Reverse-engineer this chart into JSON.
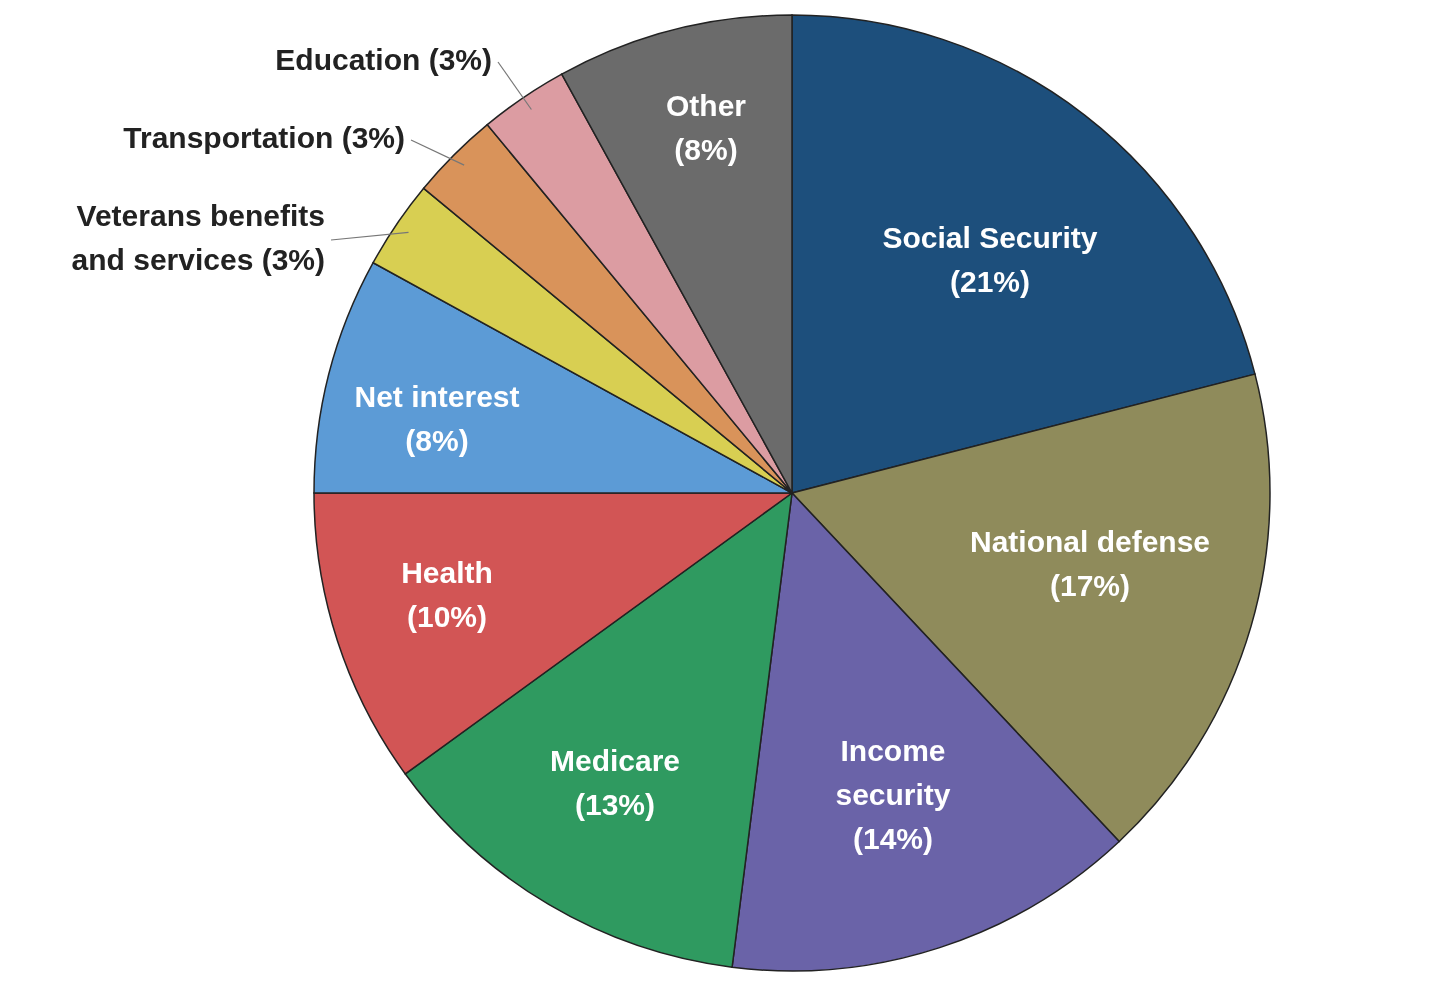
{
  "chart_data": {
    "type": "pie",
    "categories": [
      "Social Security",
      "National defense",
      "Income security",
      "Medicare",
      "Health",
      "Net interest",
      "Veterans benefits and services",
      "Transportation",
      "Education",
      "Other"
    ],
    "values": [
      21,
      17,
      14,
      13,
      10,
      8,
      3,
      3,
      3,
      8
    ],
    "colors": [
      "#1d4f7c",
      "#8f8b5b",
      "#6a63a8",
      "#2f9a60",
      "#d25555",
      "#5c9bd6",
      "#d8cf52",
      "#d9935a",
      "#dc9ca2",
      "#6b6b6b"
    ],
    "value_labels": [
      "(21%)",
      "(17%)",
      "(14%)",
      "(13%)",
      "(10%)",
      "(8%)",
      "(3%)",
      "(3%)",
      "(3%)",
      "(8%)"
    ]
  }
}
